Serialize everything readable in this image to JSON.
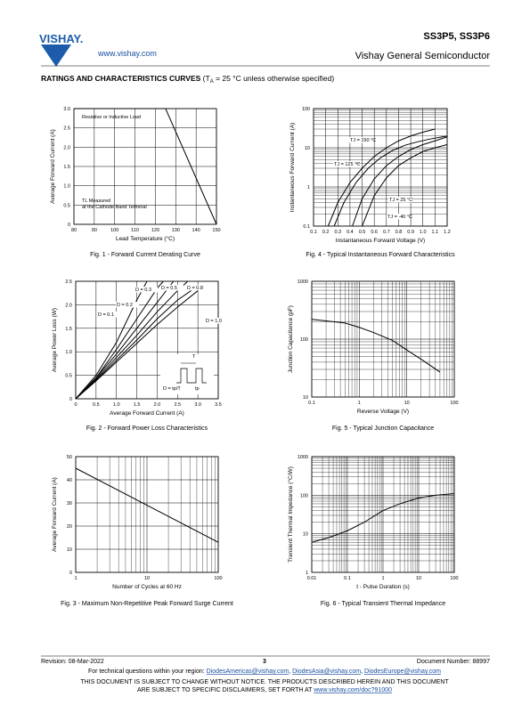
{
  "header": {
    "logo": "VISHAY.",
    "url": "www.vishay.com",
    "part": "SS3P5, SS3P6",
    "company": "Vishay General Semiconductor"
  },
  "section": {
    "title": "RATINGS AND CHARACTERISTICS CURVES",
    "note_start": " (T",
    "note_sub": "A",
    "note_end": " = 25 °C unless otherwise specified)"
  },
  "chart_data": [
    {
      "type": "line",
      "caption": "Fig. 1 - Forward Current Derating Curve",
      "xlabel": "Lead Temperature (°C)",
      "ylabel": "Average Forward Current (A)",
      "xlim": [
        80,
        150
      ],
      "xticks": [
        80,
        90,
        100,
        110,
        120,
        130,
        140,
        150
      ],
      "ylim": [
        0,
        3
      ],
      "yticks": [
        0,
        0.5,
        {
          "value": 1,
          "label": "1.0"
        },
        1.5,
        {
          "value": 2,
          "label": "2.0"
        },
        2.5,
        {
          "value": 3,
          "label": "3.0"
        }
      ],
      "grid": true,
      "series": [
        {
          "color": "#000000",
          "x": [
            80,
            125,
            150
          ],
          "values": [
            3,
            3,
            0
          ]
        }
      ],
      "annotations": [
        "Resistive or Inductive Load",
        "TL Measured",
        "at the Cathode Band Terminal"
      ]
    },
    {
      "type": "line",
      "caption": "Fig. 4 - Typical Instantaneous Forward Characteristics",
      "xlabel": "Instantaneous Forward Voltage (V)",
      "ylabel": "Instantaneous Forward Current (A)",
      "xlim": [
        0.1,
        1.2
      ],
      "xticks": [
        0.1,
        0.2,
        0.3,
        0.4,
        0.5,
        0.6,
        0.7,
        0.8,
        0.9,
        {
          "value": 1,
          "label": "1.0"
        },
        1.1,
        1.2
      ],
      "ylim": [
        0.1,
        100
      ],
      "yticks": [
        0.1,
        1,
        10,
        100
      ],
      "ylog": true,
      "grid": true,
      "minor_grid": true,
      "series": [
        {
          "name": "TJ = 150 °C",
          "color": "#000000",
          "x": [
            0.22,
            0.3,
            0.4,
            0.5,
            0.6,
            0.7,
            0.8,
            0.9,
            1.0,
            1.1
          ],
          "values": [
            0.1,
            0.4,
            1.3,
            3,
            6,
            10,
            15,
            20,
            25,
            30
          ]
        },
        {
          "name": "TJ = 125 °C",
          "color": "#000000",
          "x": [
            0.27,
            0.35,
            0.45,
            0.55,
            0.65,
            0.75,
            0.85,
            0.95,
            1.05,
            1.2
          ],
          "values": [
            0.1,
            0.4,
            1.3,
            3,
            5.5,
            8.5,
            11.5,
            14,
            16.5,
            20
          ]
        },
        {
          "name": "TJ = 25 °C",
          "color": "#000000",
          "x": [
            0.42,
            0.5,
            0.6,
            0.7,
            0.8,
            0.9,
            1.0,
            1.1,
            1.2
          ],
          "values": [
            0.1,
            0.5,
            1.6,
            3.5,
            6,
            9,
            12,
            15,
            19
          ]
        },
        {
          "name": "TJ = -40 °C",
          "color": "#000000",
          "x": [
            0.5,
            0.6,
            0.7,
            0.8,
            0.9,
            1.0,
            1.1,
            1.2
          ],
          "values": [
            0.1,
            0.6,
            1.7,
            3.5,
            5.5,
            8,
            10,
            12
          ]
        }
      ]
    },
    {
      "type": "line",
      "caption": "Fig. 2 - Forward Power Loss Characteristics",
      "xlabel": "Average Forward Current (A)",
      "ylabel": "Average Power Loss (W)",
      "xlim": [
        0,
        3.5
      ],
      "xticks": [
        0,
        0.5,
        {
          "value": 1,
          "label": "1.0"
        },
        1.5,
        {
          "value": 2,
          "label": "2.0"
        },
        2.5,
        {
          "value": 3,
          "label": "3.0"
        },
        3.5
      ],
      "ylim": [
        0,
        2.5
      ],
      "yticks": [
        0,
        0.5,
        {
          "value": 1,
          "label": "1.0"
        },
        1.5,
        {
          "value": 2,
          "label": "2.0"
        },
        2.5
      ],
      "grid": true,
      "series": [
        {
          "name": "D = 0.1",
          "color": "#000000",
          "x": [
            0,
            0.5,
            1,
            1.5,
            1.75
          ],
          "values": [
            0,
            0.5,
            1.2,
            2.1,
            2.5
          ]
        },
        {
          "name": "D = 0.2",
          "color": "#000000",
          "x": [
            0,
            0.5,
            1,
            1.5,
            2,
            2.15
          ],
          "values": [
            0,
            0.45,
            1.05,
            1.7,
            2.35,
            2.5
          ]
        },
        {
          "name": "D = 0.3",
          "color": "#000000",
          "x": [
            0,
            0.5,
            1,
            1.5,
            2,
            2.4
          ],
          "values": [
            0,
            0.45,
            0.95,
            1.5,
            2.05,
            2.5
          ]
        },
        {
          "name": "D = 0.5",
          "color": "#000000",
          "x": [
            0,
            0.5,
            1,
            1.5,
            2,
            2.5,
            2.75
          ],
          "values": [
            0,
            0.42,
            0.88,
            1.35,
            1.85,
            2.3,
            2.5
          ]
        },
        {
          "name": "D = 0.8",
          "color": "#000000",
          "x": [
            0,
            0.5,
            1,
            1.5,
            2,
            2.5,
            3
          ],
          "values": [
            0,
            0.4,
            0.82,
            1.25,
            1.7,
            2.1,
            2.4
          ]
        },
        {
          "name": "D = 1.0",
          "color": "#000000",
          "x": [
            0,
            0.5,
            1,
            1.5,
            2,
            2.5,
            3
          ],
          "values": [
            0,
            0.38,
            0.78,
            1.18,
            1.58,
            1.95,
            2.3
          ]
        }
      ],
      "annotations": [
        "T",
        "D = tp/T",
        "tp"
      ]
    },
    {
      "type": "line",
      "caption": "Fig. 5 - Typical Junction Capacitance",
      "xlabel": "Reverse Voltage (V)",
      "ylabel": "Junction Capacitance (pF)",
      "xlim": [
        0.1,
        100
      ],
      "xticks": [
        0.1,
        1,
        10,
        100
      ],
      "xlog": true,
      "ylim": [
        10,
        1000
      ],
      "yticks": [
        10,
        100,
        1000
      ],
      "ylog": true,
      "grid": true,
      "minor_grid": true,
      "series": [
        {
          "color": "#000000",
          "x": [
            0.1,
            0.5,
            1,
            2,
            5,
            10,
            20,
            50
          ],
          "values": [
            220,
            190,
            160,
            130,
            95,
            65,
            45,
            27
          ]
        }
      ]
    },
    {
      "type": "line",
      "caption": "Fig. 3 - Maximum Non-Repetitive Peak Forward Surge Current",
      "xlabel": "Number of Cycles at 60 Hz",
      "ylabel": "Average Forward Current (A)",
      "xlim": [
        1,
        100
      ],
      "xticks": [
        1,
        10,
        100
      ],
      "xlog": true,
      "ylim": [
        0,
        50
      ],
      "yticks": [
        0,
        10,
        20,
        30,
        40,
        50
      ],
      "grid": true,
      "minor_grid": true,
      "series": [
        {
          "color": "#000000",
          "x": [
            1,
            100
          ],
          "values": [
            45,
            13
          ]
        }
      ]
    },
    {
      "type": "line",
      "caption": "Fig. 6 - Typical Transient Thermal Impedance",
      "xlabel": "t - Pulse Duration (s)",
      "ylabel": "Transient Thermal Impedance (°C/W)",
      "xlim": [
        0.01,
        100
      ],
      "xticks": [
        0.01,
        0.1,
        1,
        10,
        100
      ],
      "xlog": true,
      "ylim": [
        1,
        1000
      ],
      "yticks": [
        1,
        10,
        100,
        1000
      ],
      "ylog": true,
      "grid": true,
      "minor_grid": true,
      "series": [
        {
          "color": "#000000",
          "x": [
            0.01,
            0.03,
            0.1,
            0.3,
            1,
            3,
            10,
            30,
            100
          ],
          "values": [
            6,
            8,
            12,
            20,
            40,
            60,
            85,
            100,
            110
          ]
        }
      ]
    }
  ],
  "footer": {
    "revision": "Revision: 08-Mar-2022",
    "page": "3",
    "doc_number": "Document Number: 88997",
    "contact": "For technical questions within your region: ",
    "sep": ", ",
    "emails": [
      "DiodesAmericas@vishay.com",
      "DiodesAsia@vishay.com",
      "DiodesEurope@vishay.com"
    ],
    "disclaimer1": "THIS DOCUMENT IS SUBJECT TO CHANGE WITHOUT NOTICE. THE PRODUCTS DESCRIBED HEREIN AND THIS DOCUMENT",
    "disclaimer2": "ARE SUBJECT TO SPECIFIC DISCLAIMERS, SET FORTH AT ",
    "disclaimer_link": "www.vishay.com/doc?91000"
  }
}
